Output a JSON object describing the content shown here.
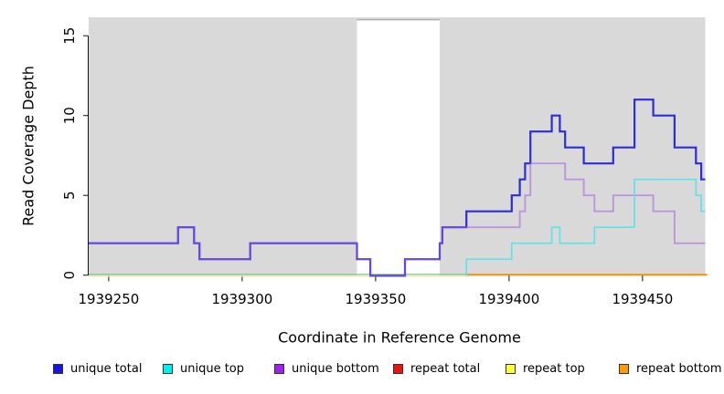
{
  "figure": {
    "background": "#ffffff"
  },
  "chart_data": {
    "type": "line",
    "subtype": "step",
    "title": "",
    "xlabel": "Coordinate in Reference Genome",
    "ylabel": "Read Coverage Depth",
    "xlim": [
      1939242.5,
      1939473.5
    ],
    "ylim": [
      0,
      16.2
    ],
    "xticks": [
      1939250,
      1939300,
      1939350,
      1939400,
      1939450
    ],
    "yticks": [
      0,
      5,
      10,
      15
    ],
    "grid": false,
    "legend_position": "bottom",
    "plot_background": "#d9d9d9",
    "white_band": {
      "from": 1939343,
      "to": 1939374,
      "border": "#999999",
      "top_value": 16
    },
    "zero_lines": [
      {
        "name": "repeat-top-zero-line",
        "color": "#e9e5af",
        "width": 1.4,
        "from": 1939242.5,
        "to": 1939385,
        "dy": 1.1
      },
      {
        "name": "zero-overlap-line",
        "color": "#8cc88c",
        "width": 1.4,
        "from": 1939242.5,
        "to": 1939385,
        "dy": -0.9
      },
      {
        "name": "repeat-bottom-zero-line",
        "color": "#ff8c00",
        "width": 2.0,
        "from": 1939384.5,
        "to": 1939474.2,
        "dy": -0.5
      }
    ],
    "series": [
      {
        "name": "unique total",
        "swatch": "#1414e6",
        "stroke": "#2b2be0",
        "stroke_width": 2.2,
        "visible": true,
        "z": 1,
        "steps": [
          [
            1939242.5,
            2
          ],
          [
            1939276,
            3
          ],
          [
            1939282,
            2
          ],
          [
            1939284,
            1
          ],
          [
            1939303,
            2
          ],
          [
            1939343,
            1
          ],
          [
            1939348,
            0
          ],
          [
            1939361,
            1
          ],
          [
            1939374,
            2
          ],
          [
            1939375,
            3
          ],
          [
            1939384,
            4
          ],
          [
            1939401,
            5
          ],
          [
            1939404,
            6
          ],
          [
            1939406,
            7
          ],
          [
            1939408,
            9
          ],
          [
            1939416,
            10
          ],
          [
            1939419,
            9
          ],
          [
            1939421,
            8
          ],
          [
            1939428,
            7
          ],
          [
            1939439,
            8
          ],
          [
            1939447,
            11
          ],
          [
            1939454,
            10
          ],
          [
            1939462,
            8
          ],
          [
            1939470,
            7
          ],
          [
            1939472,
            6
          ]
        ],
        "x_end": 1939473.5
      },
      {
        "name": "unique top",
        "swatch": "#00f0f0",
        "stroke": "#5fe3e8",
        "stroke_width": 1.7,
        "visible": true,
        "z": 3,
        "draw_from": 1939384,
        "steps": [
          [
            1939242.5,
            0
          ],
          [
            1939384,
            1
          ],
          [
            1939401,
            2
          ],
          [
            1939416,
            3
          ],
          [
            1939419,
            2
          ],
          [
            1939432,
            3
          ],
          [
            1939447,
            6
          ],
          [
            1939470,
            5
          ],
          [
            1939472,
            4
          ]
        ],
        "x_end": 1939473.5
      },
      {
        "name": "unique bottom",
        "swatch": "#a020f0",
        "stroke": "#a35fe0",
        "stroke_width": 1.9,
        "stroke_opacity": 0.55,
        "visible": true,
        "z": 2,
        "steps": [
          [
            1939242.5,
            2
          ],
          [
            1939276,
            3
          ],
          [
            1939282,
            2
          ],
          [
            1939284,
            1
          ],
          [
            1939303,
            2
          ],
          [
            1939343,
            1
          ],
          [
            1939348,
            0
          ],
          [
            1939361,
            1
          ],
          [
            1939374,
            2
          ],
          [
            1939375,
            3
          ],
          [
            1939404,
            4
          ],
          [
            1939406,
            5
          ],
          [
            1939408,
            7
          ],
          [
            1939421,
            6
          ],
          [
            1939428,
            5
          ],
          [
            1939432,
            4
          ],
          [
            1939439,
            5
          ],
          [
            1939454,
            4
          ],
          [
            1939462,
            2
          ]
        ],
        "x_end": 1939473.5
      },
      {
        "name": "repeat total",
        "swatch": "#ee1111",
        "stroke": "#ee1111",
        "visible": false,
        "steps": [
          [
            1939242.5,
            0
          ]
        ],
        "x_end": 1939473.5
      },
      {
        "name": "repeat top",
        "swatch": "#ffff33",
        "stroke": "#e9e5af",
        "visible": false,
        "note": "value 0 across range; rendered as pale yellow zero line",
        "steps": [
          [
            1939242.5,
            0
          ]
        ],
        "x_end": 1939473.5
      },
      {
        "name": "repeat bottom",
        "swatch": "#ff9900",
        "stroke": "#ff8c00",
        "visible": false,
        "note": "value 0 across range; rendered as orange zero line from 1939385",
        "steps": [
          [
            1939242.5,
            0
          ]
        ],
        "x_end": 1939473.5
      }
    ]
  },
  "legend": {
    "labels": [
      "unique total",
      "unique top",
      "unique bottom",
      "repeat total",
      "repeat top",
      "repeat bottom"
    ]
  }
}
